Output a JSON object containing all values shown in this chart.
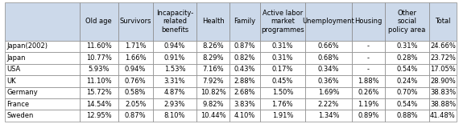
{
  "columns": [
    "",
    "Old age",
    "Survivors",
    "Incapacity-\nrelated\nbenefits",
    "Health",
    "Family",
    "Active labor\nmarket\nprogrammes",
    "Unemployment",
    "Housing",
    "Other\nsocial\npolicy area",
    "Total"
  ],
  "col_widths_rel": [
    1.4,
    0.72,
    0.65,
    0.82,
    0.62,
    0.56,
    0.85,
    0.87,
    0.62,
    0.82,
    0.52
  ],
  "rows": [
    [
      "Japan(2002)",
      "11.60%",
      "1.71%",
      "0.94%",
      "8.26%",
      "0.87%",
      "0.31%",
      "0.66%",
      "-",
      "0.31%",
      "24.66%"
    ],
    [
      "Japan",
      "10.77%",
      "1.66%",
      "0.91%",
      "8.29%",
      "0.82%",
      "0.31%",
      "0.68%",
      "-",
      "0.28%",
      "23.72%"
    ],
    [
      "USA",
      "5.93%",
      "0.94%",
      "1.53%",
      "7.16%",
      "0.43%",
      "0.17%",
      "0.34%",
      "-",
      "0.54%",
      "17.05%"
    ],
    [
      "UK",
      "11.10%",
      "0.76%",
      "3.31%",
      "7.92%",
      "2.88%",
      "0.45%",
      "0.36%",
      "1.88%",
      "0.24%",
      "28.90%"
    ],
    [
      "Germany",
      "15.72%",
      "0.58%",
      "4.87%",
      "10.82%",
      "2.68%",
      "1.50%",
      "1.69%",
      "0.26%",
      "0.70%",
      "38.83%"
    ],
    [
      "France",
      "14.54%",
      "2.05%",
      "2.93%",
      "9.82%",
      "3.83%",
      "1.76%",
      "2.22%",
      "1.19%",
      "0.54%",
      "38.88%"
    ],
    [
      "Sweden",
      "12.95%",
      "0.87%",
      "8.10%",
      "10.44%",
      "4.10%",
      "1.91%",
      "1.34%",
      "0.89%",
      "0.88%",
      "41.48%"
    ]
  ],
  "header_bg": "#ccd9ea",
  "data_bg": "#ffffff",
  "border_color": "#888888",
  "text_color": "#000000",
  "font_size": 6.0,
  "header_font_size": 6.0
}
